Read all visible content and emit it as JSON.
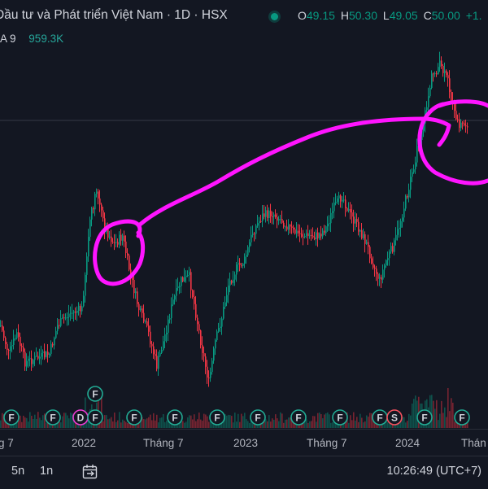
{
  "legend": {
    "title": "Đầu tư và Phát triển Việt Nam · 1D · HSX",
    "ohlc": [
      {
        "k": "O",
        "v": "49.15"
      },
      {
        "k": "H",
        "v": "50.30"
      },
      {
        "k": "L",
        "v": "49.05"
      },
      {
        "k": "C",
        "v": "50.00"
      }
    ],
    "change": "+1."
  },
  "volume_indicator": {
    "label": "A 9",
    "value": "959.3K"
  },
  "x_axis": {
    "labels": [
      "g 7",
      "2022",
      "Tháng 7",
      "2023",
      "Tháng 7",
      "2024",
      "Thán"
    ]
  },
  "event_markers": [
    {
      "letter": "F",
      "color": "#22ab94"
    },
    {
      "letter": "D",
      "color": "#ec3bd3"
    },
    {
      "letter": "S",
      "color": "#f7525f"
    }
  ],
  "footer": {
    "range_5y": "5n",
    "range_1y": "1n",
    "clock": "10:26:49 (UTC+7)"
  },
  "colors": {
    "up": "#089981",
    "down": "#f23645",
    "annotation": "#ff14ff",
    "background": "#131722"
  },
  "icons": {
    "date_range": "calendar-arrow-icon"
  }
}
